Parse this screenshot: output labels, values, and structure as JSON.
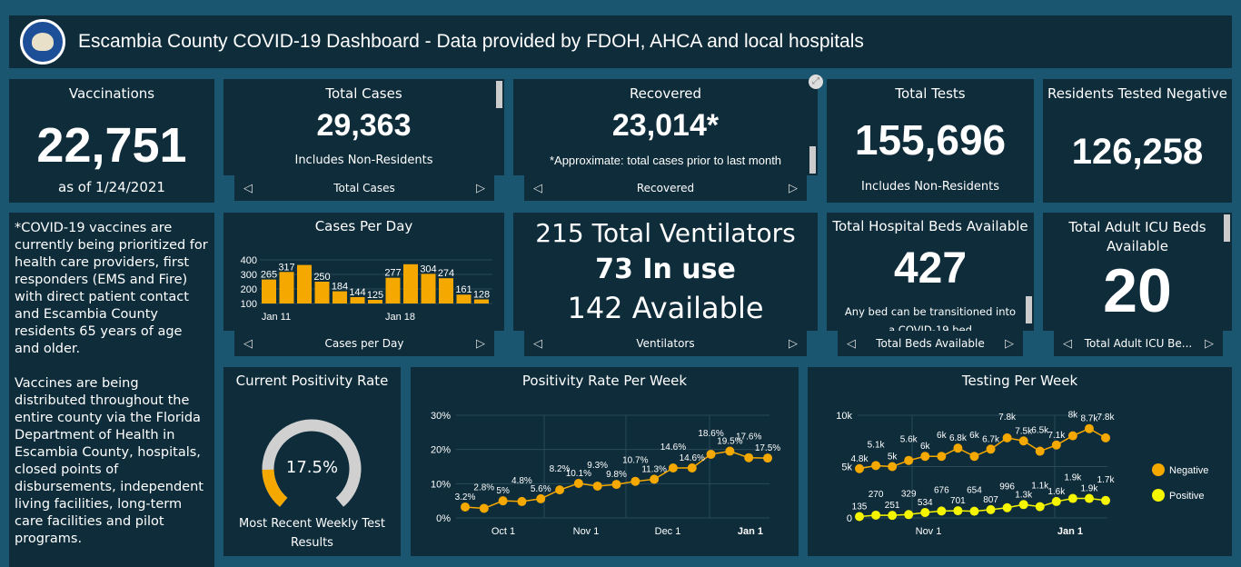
{
  "header": {
    "title": "Escambia County COVID-19 Dashboard - Data provided by FDOH, AHCA and local hospitals",
    "logo_text": "ESCAMBIA COUNTY FLORIDA"
  },
  "vaccinations": {
    "title": "Vaccinations",
    "value": "22,751",
    "sub": "as of 1/24/2021"
  },
  "total_cases": {
    "title": "Total Cases",
    "value": "29,363",
    "sub": "Includes Non-Residents",
    "nav": "Total Cases"
  },
  "recovered": {
    "title": "Recovered",
    "value": "23,014*",
    "sub": "*Approximate: total cases prior to last month",
    "nav": "Recovered"
  },
  "total_tests": {
    "title": "Total Tests",
    "value": "155,696",
    "sub": "Includes Non-Residents"
  },
  "negative": {
    "title": "Residents Tested Negative",
    "value": "126,258"
  },
  "info_text": "*COVID-19 vaccines are currently being prioritized for health care providers, first responders (EMS and Fire) with direct patient contact and Escambia County residents 65 years of age and older.\n\nVaccines are being distributed throughout the entire county via the Florida Department of Health in Escambia County, hospitals, closed points of disbursements, independent living facilities, long-term care facilities and pilot programs.",
  "ventilators": {
    "total": "215 Total Ventilators",
    "in_use": "73 In use",
    "available": "142 Available",
    "nav": "Ventilators"
  },
  "beds": {
    "title": "Total Hospital Beds Available",
    "value": "427",
    "sub": "Any bed can be transitioned into a COVID-19 bed",
    "nav": "Total Beds Available"
  },
  "icu": {
    "title": "Total Adult ICU Beds Available",
    "value": "20",
    "nav": "Total Adult ICU Be..."
  },
  "positivity": {
    "title": "Current Positivity Rate",
    "value": "17.5%",
    "percent": 17.5,
    "sub": "Most Recent Weekly Test Results",
    "colors": {
      "fill": "#f5a800",
      "track": "#d0d0d0"
    }
  },
  "colors": {
    "accent": "#f5a800",
    "positive": "#f5f500",
    "bg": "#1b5670",
    "panel": "#0e2c3a"
  },
  "chart_data": [
    {
      "type": "bar",
      "title": "Cases Per Day",
      "nav": "Cases per Day",
      "categories": [
        "Jan 11",
        "Jan 12",
        "Jan 13",
        "Jan 14",
        "Jan 15",
        "Jan 16",
        "Jan 17",
        "Jan 18",
        "Jan 19",
        "Jan 20",
        "Jan 21",
        "Jan 22",
        "Jan 23"
      ],
      "values": [
        265,
        317,
        365,
        250,
        184,
        144,
        125,
        277,
        370,
        304,
        274,
        161,
        128
      ],
      "labels": [
        "265",
        "317",
        "",
        "250",
        "184",
        "144",
        "125",
        "277",
        "",
        "304",
        "274",
        "161",
        "128"
      ],
      "yticks": [
        100,
        200,
        300,
        400
      ],
      "ylim": [
        100,
        400
      ],
      "xticks": [
        "Jan 11",
        "Jan 18"
      ],
      "color": "#f5a800"
    },
    {
      "type": "line",
      "title": "Positivity Rate Per Week",
      "labels": [
        "3.2%",
        "2.8%",
        "5%",
        "4.8%",
        "5.6%",
        "8.2%",
        "10.1%",
        "9.3%",
        "9.8%",
        "10.7%",
        "11.3%",
        "14.6%",
        "14.6%",
        "18.6%",
        "19.5%",
        "17.6%",
        "17.5%"
      ],
      "values": [
        3.2,
        2.8,
        5,
        4.8,
        5.6,
        8.2,
        10.1,
        9.3,
        9.8,
        10.7,
        11.3,
        14.6,
        14.6,
        18.6,
        19.5,
        17.6,
        17.5
      ],
      "yticks": [
        "0%",
        "10%",
        "20%",
        "30%"
      ],
      "ylim": [
        0,
        30
      ],
      "xticks": [
        "Oct 1",
        "Nov 1",
        "Dec 1",
        "Jan 1"
      ],
      "color": "#f5a800"
    },
    {
      "type": "line",
      "title": "Testing Per Week",
      "series": [
        {
          "name": "Negative",
          "values": [
            4800,
            5100,
            5000,
            5600,
            6000,
            6000,
            6800,
            6000,
            6700,
            7800,
            7500,
            6500,
            7100,
            8000,
            8700,
            7800
          ],
          "labels": [
            "4.8k",
            "5.1k",
            "5k",
            "5.6k",
            "6k",
            "6k",
            "6.8k",
            "6k",
            "6.7k",
            "7.8k",
            "7.5k",
            "6.5k",
            "7.1k",
            "8k",
            "8.7k",
            "7.8k"
          ],
          "color": "#f5a800"
        },
        {
          "name": "Positive",
          "values": [
            135,
            270,
            251,
            329,
            534,
            676,
            701,
            654,
            807,
            996,
            1300,
            1100,
            1600,
            1900,
            1900,
            1700
          ],
          "labels": [
            "135",
            "270",
            "251",
            "329",
            "534",
            "676",
            "701",
            "654",
            "807",
            "996",
            "1.3k",
            "1.1k",
            "1.6k",
            "1.9k",
            "1.9k",
            "1.7k"
          ],
          "color": "#f5f500"
        }
      ],
      "yticks": [
        "0",
        "5k",
        "10k"
      ],
      "ylim": [
        0,
        10000
      ],
      "xticks": [
        "Nov 1",
        "Jan 1"
      ],
      "legend": "right"
    }
  ]
}
